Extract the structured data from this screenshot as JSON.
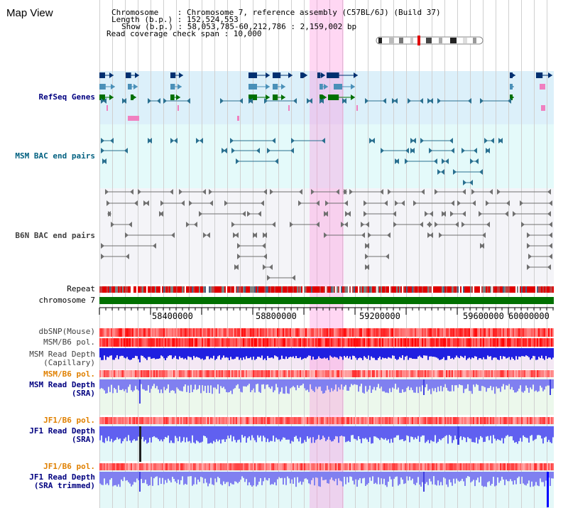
{
  "header": {
    "title": "Map View",
    "chromosome_row": "Chromosome    : Chromosome 7, reference assembly (C57BL/6J) (Build 37)",
    "length_row": "Length (b.p.) : 152,524,553",
    "show_row": "Show (b.p.) : 58,053,785-60,212,786 : 2,159,002 bp",
    "coverage_row": "Read coverage check span : 10,000"
  },
  "tracks": {
    "refseq": "RefSeq Genes",
    "msm_bac": "MSM BAC end pairs",
    "b6n_bac": "B6N BAC end pairs",
    "repeat": "Repeat",
    "chromosome": "chromosome 7",
    "dbsnp": "dbSNP(Mouse)",
    "msm_b6_pol_1": "MSM/B6 pol.",
    "msm_read_depth_cap_1": "MSM Read Depth",
    "msm_read_depth_cap_2": "(Capillary)",
    "msm_b6_pol_2": "MSM/B6 pol.",
    "msm_read_depth_sra_1": "MSM Read Depth",
    "msm_read_depth_sra_2": "(SRA)",
    "jf1_b6_pol_1": "JF1/B6 pol.",
    "jf1_read_depth_sra_1": "JF1 Read Depth",
    "jf1_read_depth_sra_2": "(SRA)",
    "jf1_b6_pol_2": "JF1/B6 pol.",
    "jf1_read_depth_trim_1": "JF1 Read Depth",
    "jf1_read_depth_trim_2": "(SRA trimmed)"
  },
  "ruler": {
    "ticks": [
      "58400000",
      "58800000",
      "59200000",
      "59600000",
      "60000000"
    ]
  },
  "colors": {
    "refseq_label": "#000080",
    "msm_bac_label": "#006080",
    "b6n_bac_label": "#404040",
    "orange_label": "#e08000",
    "blue_label": "#000080",
    "dbsnp_label": "#404040"
  }
}
